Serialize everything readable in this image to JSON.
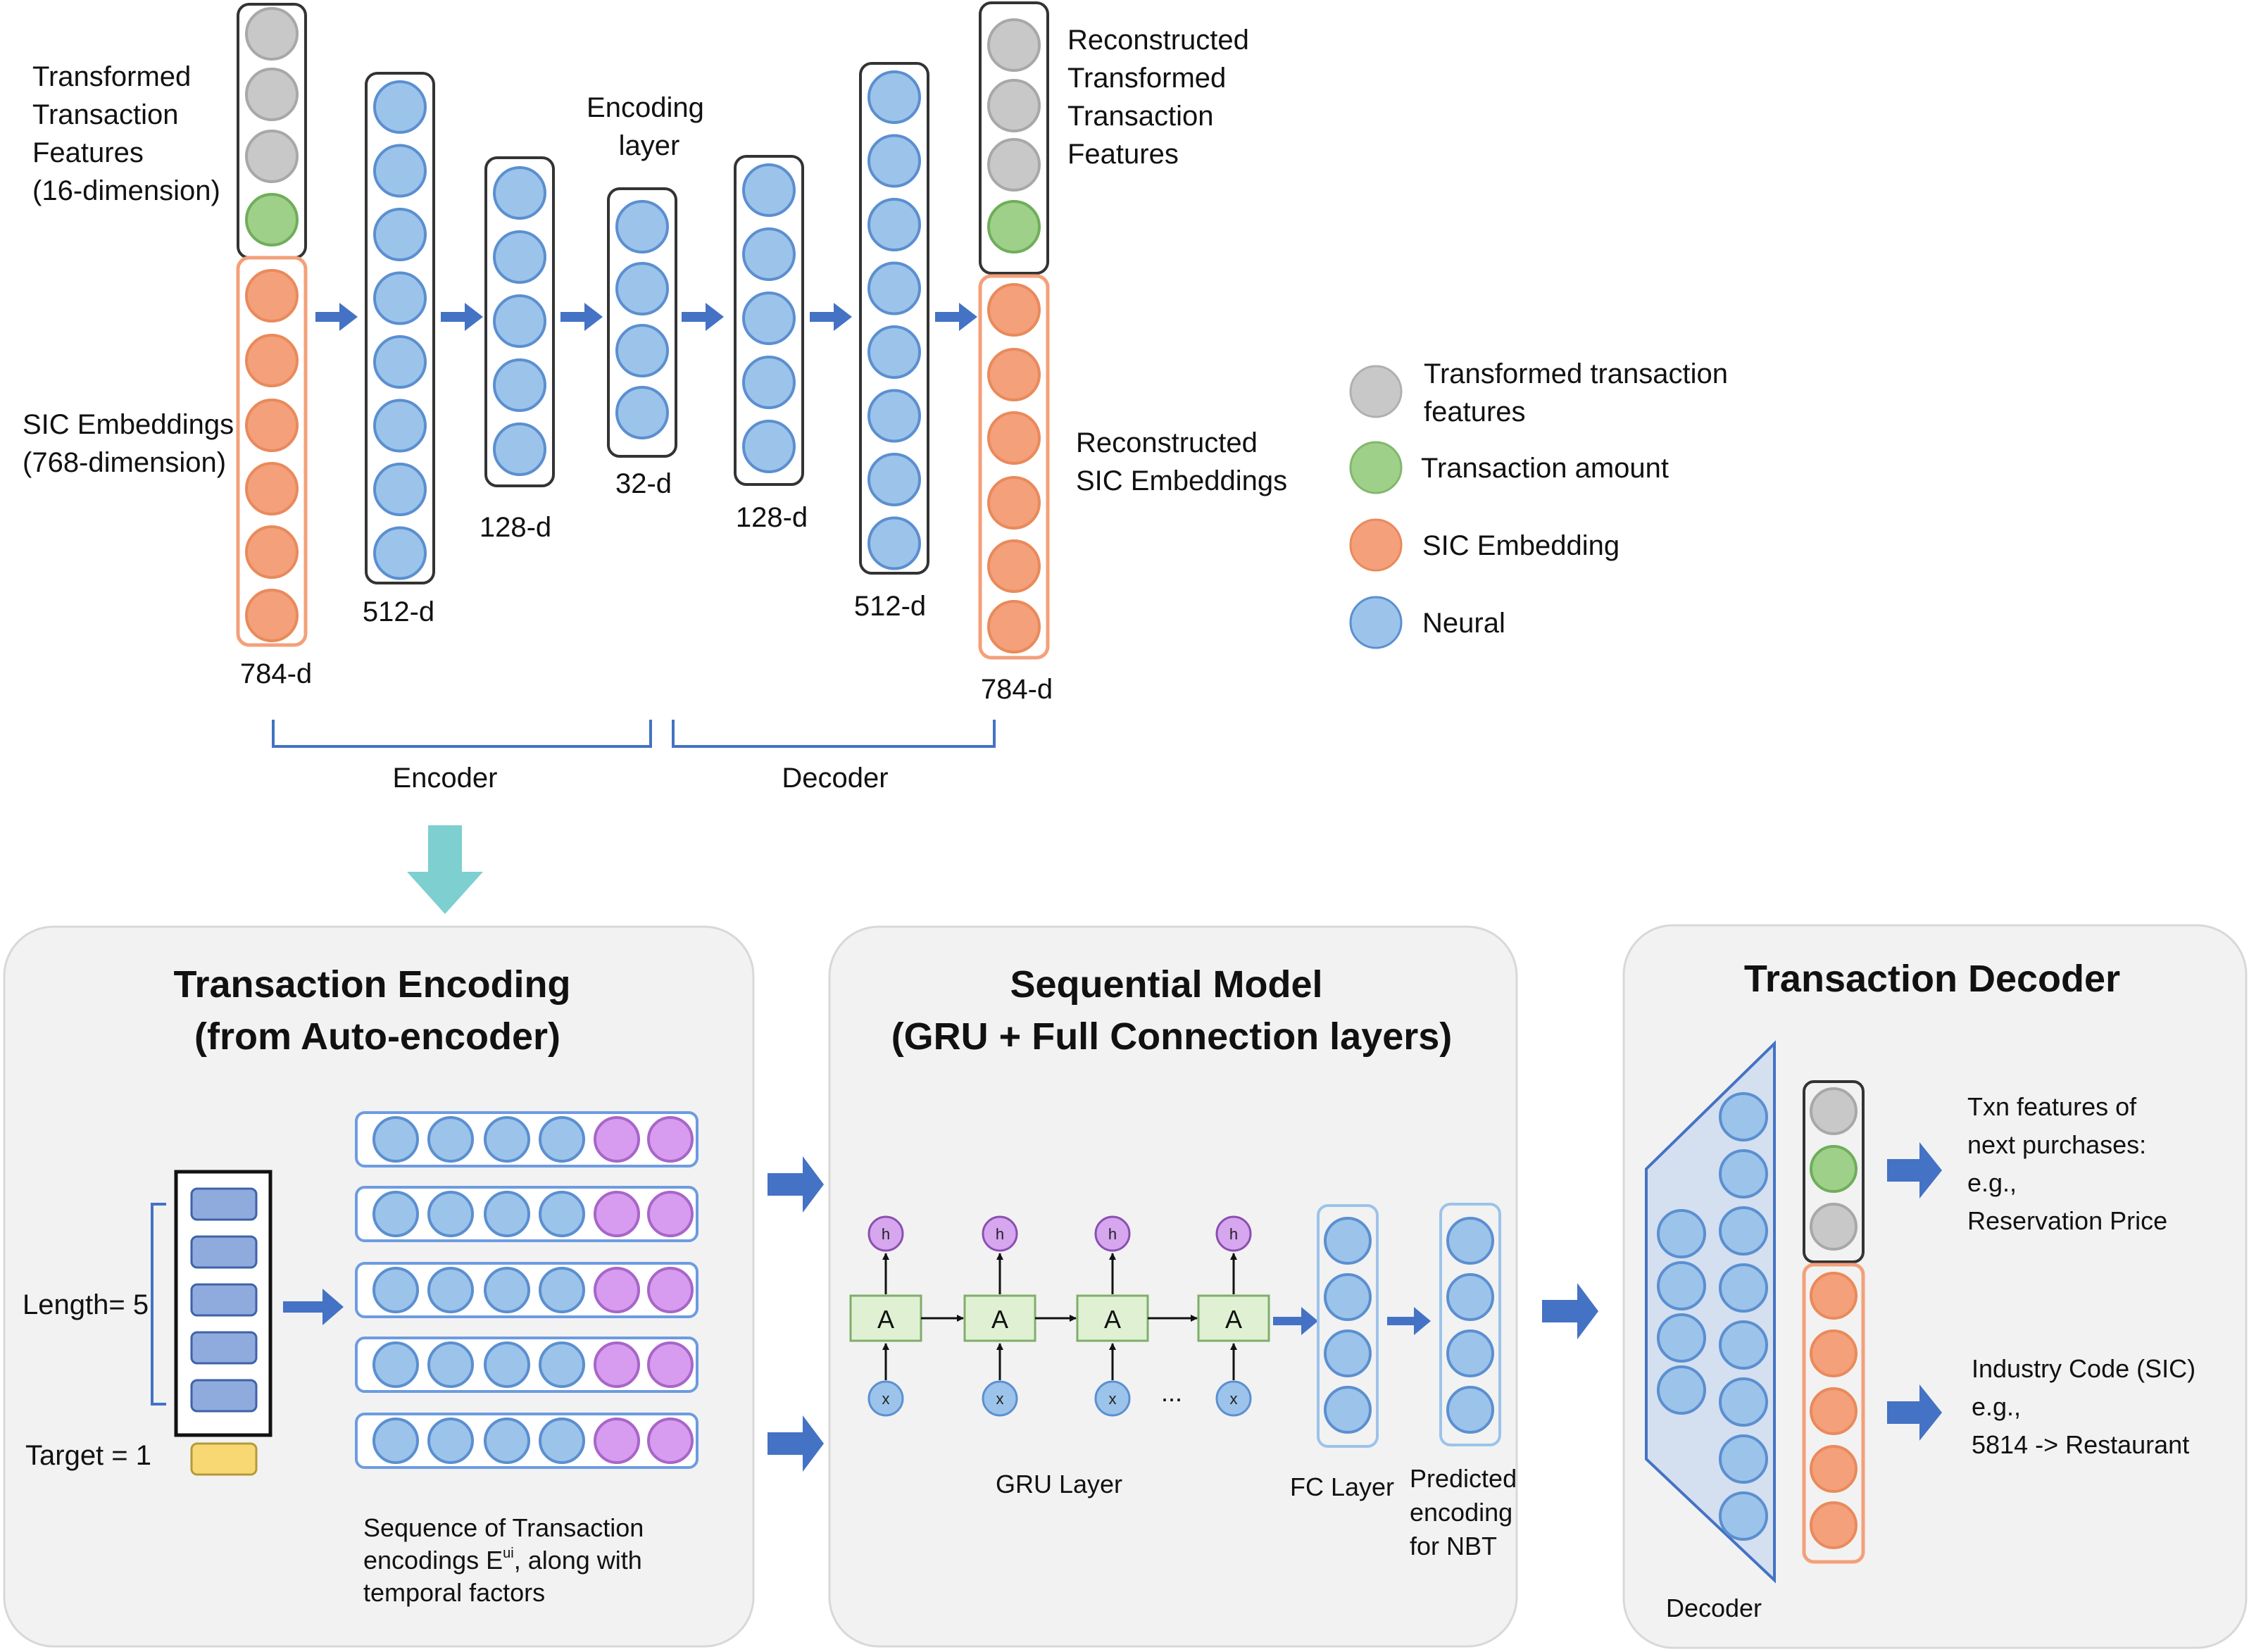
{
  "autoencoder": {
    "input_top_label": [
      "Transformed",
      "Transaction",
      "Features",
      "(16-dimension)"
    ],
    "input_bottom_label": [
      "SIC Embeddings",
      "(768-dimension)"
    ],
    "input_dim": "784-d",
    "enc1_dim": "512-d",
    "enc2_dim": "128-d",
    "encoding_layer_label": [
      "Encoding",
      "layer"
    ],
    "code_dim": "32-d",
    "dec1_dim": "128-d",
    "dec2_dim": "512-d",
    "output_top_label": [
      "Reconstructed",
      "Transformed",
      "Transaction",
      "Features"
    ],
    "output_bottom_label": [
      "Reconstructed",
      "SIC Embeddings"
    ],
    "output_dim": "784-d",
    "encoder_label": "Encoder",
    "decoder_label": "Decoder"
  },
  "legend": [
    {
      "label": [
        "Transformed transaction",
        "features"
      ],
      "color": "#c8c8c8"
    },
    {
      "label": [
        "Transaction amount"
      ],
      "color": "#9fd08a"
    },
    {
      "label": [
        "SIC Embedding"
      ],
      "color": "#f4a07a"
    },
    {
      "label": [
        "Neural"
      ],
      "color": "#9cc3ea"
    }
  ],
  "panels": {
    "encoding": {
      "title": [
        "Transaction Encoding",
        "(from Auto-encoder)"
      ],
      "length_label": "Length= 5",
      "target_label": "Target = 1",
      "caption": [
        "Sequence of Transaction",
        "encodings E",
        ", along with",
        "temporal factors"
      ],
      "caption_superscript": "ui"
    },
    "sequential": {
      "title": [
        "Sequential Model",
        "(GRU + Full Connection layers)"
      ],
      "cell_label": "A",
      "h_labels": [
        "h",
        "h",
        "h",
        "h"
      ],
      "x_labels": [
        "x",
        "x",
        "x",
        "x"
      ],
      "ellipsis": "...",
      "gru_label": "GRU Layer",
      "fc_label": "FC Layer",
      "predicted_label": [
        "Predicted",
        "encoding",
        "for NBT"
      ]
    },
    "decoder": {
      "title": "Transaction Decoder",
      "decoder_label": "Decoder",
      "txn_output": [
        "Txn features of",
        "next purchases:",
        "e.g.,",
        "Reservation Price"
      ],
      "sic_output": [
        "Industry Code (SIC)",
        "e.g.,",
        "5814 -> Restaurant"
      ]
    }
  },
  "colors": {
    "gray": "#c8c8c8",
    "green": "#9fd08a",
    "orange": "#f4a07a",
    "blue": "#9cc3ea",
    "purple": "#d79cf0",
    "arrow": "#4472c4",
    "teal_arrow": "#7ecfcf",
    "gru_cell": "#dff1d2",
    "target_bar": "#f8d872"
  }
}
